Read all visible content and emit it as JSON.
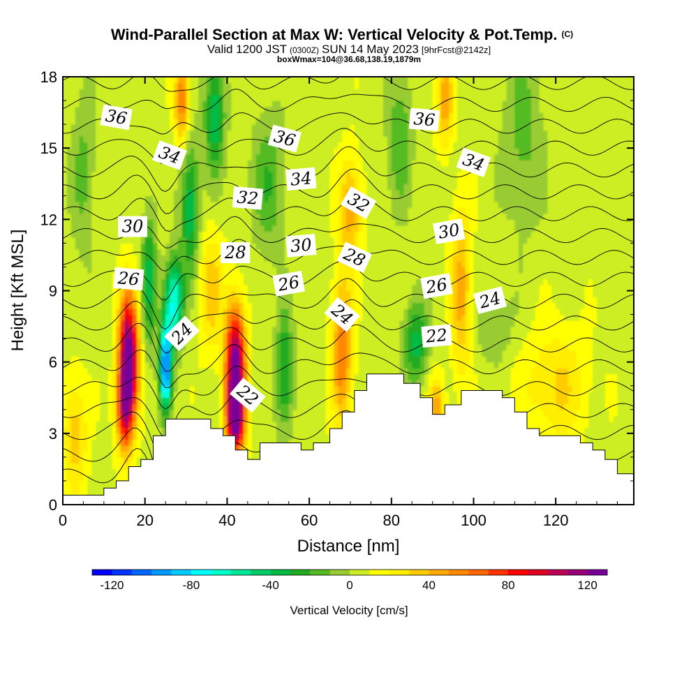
{
  "title": {
    "main": "Wind-Parallel Section at Max W: Vertical Velocity & Pot.Temp.",
    "copyright": "(C)",
    "valid_prefix": "Valid 1200 JST",
    "valid_utc": "(0300Z)",
    "valid_date": "SUN 14 May 2023",
    "forecast": "[9hrFcst@2142z]",
    "box": "boxWmax=104@36.68,138.19,1879m"
  },
  "chart_data": {
    "type": "heatmap",
    "xlabel": "Distance [nm]",
    "ylabel": "Height [Kft MSL]",
    "xlim": [
      0,
      139
    ],
    "ylim": [
      0,
      18
    ],
    "x_ticks": [
      0,
      20,
      40,
      60,
      80,
      100,
      120
    ],
    "y_ticks": [
      0,
      3,
      6,
      9,
      12,
      15,
      18
    ],
    "colorbar": {
      "label": "Vertical Velocity [cm/s]",
      "ticks": [
        -120,
        -80,
        -40,
        0,
        40,
        80,
        120
      ],
      "range": [
        -130,
        130
      ],
      "colors": [
        "#0000ff",
        "#0033ff",
        "#0066ff",
        "#0099ff",
        "#00ccff",
        "#00ffff",
        "#00ffcc",
        "#00e699",
        "#00cc66",
        "#00bb44",
        "#22aa22",
        "#55bb22",
        "#99cc33",
        "#ccee22",
        "#ffff00",
        "#ffee00",
        "#ffcc00",
        "#ffaa00",
        "#ff8800",
        "#ff6600",
        "#ff3300",
        "#ff0000",
        "#dd0022",
        "#bb0055",
        "#990077",
        "#770099"
      ]
    },
    "vertical_velocity_cells": [
      {
        "x": 16,
        "y": 6.2,
        "w": 130,
        "sx": 2.3,
        "sy": 2.6
      },
      {
        "x": 15,
        "y": 4.0,
        "w": 70,
        "sx": 2.0,
        "sy": 1.8
      },
      {
        "x": 25,
        "y": 5.8,
        "w": -110,
        "sx": 1.4,
        "sy": 1.8
      },
      {
        "x": 27,
        "y": 8.5,
        "w": -80,
        "sx": 2.2,
        "sy": 1.8
      },
      {
        "x": 31,
        "y": 12.5,
        "w": -45,
        "sx": 2.3,
        "sy": 2.8
      },
      {
        "x": 37,
        "y": 16.5,
        "w": -45,
        "sx": 2.5,
        "sy": 2.5
      },
      {
        "x": 42,
        "y": 5.8,
        "w": 125,
        "sx": 2.4,
        "sy": 2.5
      },
      {
        "x": 42,
        "y": 3.5,
        "w": 90,
        "sx": 2.2,
        "sy": 1.4
      },
      {
        "x": 36,
        "y": 9.0,
        "w": 30,
        "sx": 3.0,
        "sy": 2.5
      },
      {
        "x": 54,
        "y": 5.5,
        "w": -40,
        "sx": 2.2,
        "sy": 2.5
      },
      {
        "x": 68,
        "y": 6.5,
        "w": 55,
        "sx": 2.5,
        "sy": 3.0
      },
      {
        "x": 70,
        "y": 12.5,
        "w": 40,
        "sx": 2.8,
        "sy": 2.2
      },
      {
        "x": 29,
        "y": 17.0,
        "w": 55,
        "sx": 1.8,
        "sy": 1.8
      },
      {
        "x": 21,
        "y": 9.5,
        "w": -40,
        "sx": 1.8,
        "sy": 3.0
      },
      {
        "x": 50,
        "y": 13.5,
        "w": -25,
        "sx": 4.0,
        "sy": 3.0
      },
      {
        "x": 86,
        "y": 6.8,
        "w": -40,
        "sx": 3.0,
        "sy": 1.8
      },
      {
        "x": 91,
        "y": 3.8,
        "w": 45,
        "sx": 2.0,
        "sy": 1.5
      },
      {
        "x": 97,
        "y": 9.0,
        "w": 40,
        "sx": 2.5,
        "sy": 3.5
      },
      {
        "x": 93,
        "y": 17.0,
        "w": 40,
        "sx": 2.0,
        "sy": 2.0
      },
      {
        "x": 82,
        "y": 15.5,
        "w": -25,
        "sx": 3.0,
        "sy": 3.0
      },
      {
        "x": 3,
        "y": 3.0,
        "w": 30,
        "sx": 3.0,
        "sy": 2.5
      },
      {
        "x": 5,
        "y": 14.0,
        "w": -18,
        "sx": 3.0,
        "sy": 4.0
      },
      {
        "x": 112,
        "y": 15.5,
        "w": -20,
        "sx": 5.0,
        "sy": 4.0
      },
      {
        "x": 120,
        "y": 5.0,
        "w": 25,
        "sx": 8.0,
        "sy": 2.5
      },
      {
        "x": 105,
        "y": 7.5,
        "w": -15,
        "sx": 5.0,
        "sy": 1.5
      }
    ],
    "terrain_kft": [
      [
        0,
        0.4
      ],
      [
        10,
        0.4
      ],
      [
        10,
        0.7
      ],
      [
        13,
        0.7
      ],
      [
        13,
        1.0
      ],
      [
        16,
        1.0
      ],
      [
        16,
        1.6
      ],
      [
        19,
        1.6
      ],
      [
        19,
        1.9
      ],
      [
        22,
        1.9
      ],
      [
        22,
        2.9
      ],
      [
        25,
        2.9
      ],
      [
        25,
        3.6
      ],
      [
        36,
        3.6
      ],
      [
        36,
        3.2
      ],
      [
        39,
        3.2
      ],
      [
        39,
        2.9
      ],
      [
        42,
        2.9
      ],
      [
        42,
        2.3
      ],
      [
        45,
        2.3
      ],
      [
        45,
        1.9
      ],
      [
        48,
        1.9
      ],
      [
        48,
        2.6
      ],
      [
        58,
        2.6
      ],
      [
        58,
        2.3
      ],
      [
        61,
        2.3
      ],
      [
        61,
        2.6
      ],
      [
        65,
        2.6
      ],
      [
        65,
        3.2
      ],
      [
        68,
        3.2
      ],
      [
        68,
        3.9
      ],
      [
        71,
        3.9
      ],
      [
        71,
        4.8
      ],
      [
        74,
        4.8
      ],
      [
        74,
        5.5
      ],
      [
        83,
        5.5
      ],
      [
        83,
        5.1
      ],
      [
        87,
        5.1
      ],
      [
        87,
        4.5
      ],
      [
        90,
        4.5
      ],
      [
        90,
        3.8
      ],
      [
        93,
        3.8
      ],
      [
        93,
        4.2
      ],
      [
        97,
        4.2
      ],
      [
        97,
        4.8
      ],
      [
        107,
        4.8
      ],
      [
        107,
        4.5
      ],
      [
        110,
        4.5
      ],
      [
        110,
        3.9
      ],
      [
        113,
        3.9
      ],
      [
        113,
        3.2
      ],
      [
        116,
        3.2
      ],
      [
        116,
        2.9
      ],
      [
        126,
        2.9
      ],
      [
        126,
        2.6
      ],
      [
        129,
        2.6
      ],
      [
        129,
        2.3
      ],
      [
        132,
        2.3
      ],
      [
        132,
        1.9
      ],
      [
        135,
        1.9
      ],
      [
        135,
        1.3
      ],
      [
        139,
        1.3
      ]
    ],
    "potential_temperature_levels": [
      20,
      21,
      22,
      23,
      24,
      25,
      26,
      27,
      28,
      29,
      30,
      31,
      32,
      33,
      34,
      35,
      36,
      37,
      38,
      39,
      40
    ],
    "potential_temperature_labels": [
      {
        "text": "36",
        "x": 13,
        "y": 16.3,
        "angle": 10
      },
      {
        "text": "34",
        "x": 26,
        "y": 14.7,
        "angle": 20
      },
      {
        "text": "30",
        "x": 17,
        "y": 11.7,
        "angle": 0
      },
      {
        "text": "26",
        "x": 16,
        "y": 9.5,
        "angle": 5
      },
      {
        "text": "24",
        "x": 29,
        "y": 7.2,
        "angle": -45
      },
      {
        "text": "32",
        "x": 45,
        "y": 12.9,
        "angle": 5
      },
      {
        "text": "28",
        "x": 42,
        "y": 10.6,
        "angle": 0
      },
      {
        "text": "22",
        "x": 45,
        "y": 4.6,
        "angle": 40
      },
      {
        "text": "36",
        "x": 54,
        "y": 15.4,
        "angle": 15
      },
      {
        "text": "34",
        "x": 58,
        "y": 13.7,
        "angle": -5
      },
      {
        "text": "30",
        "x": 58,
        "y": 10.9,
        "angle": -5
      },
      {
        "text": "26",
        "x": 55,
        "y": 9.3,
        "angle": -10
      },
      {
        "text": "32",
        "x": 72,
        "y": 12.7,
        "angle": 30
      },
      {
        "text": "28",
        "x": 71,
        "y": 10.4,
        "angle": 25
      },
      {
        "text": "24",
        "x": 68,
        "y": 8.0,
        "angle": 40
      },
      {
        "text": "36",
        "x": 88,
        "y": 16.2,
        "angle": 5
      },
      {
        "text": "34",
        "x": 100,
        "y": 14.4,
        "angle": 20
      },
      {
        "text": "30",
        "x": 94,
        "y": 11.5,
        "angle": -10
      },
      {
        "text": "26",
        "x": 91,
        "y": 9.2,
        "angle": -10
      },
      {
        "text": "22",
        "x": 91,
        "y": 7.1,
        "angle": -5
      },
      {
        "text": "24",
        "x": 104,
        "y": 8.6,
        "angle": -15
      }
    ]
  }
}
